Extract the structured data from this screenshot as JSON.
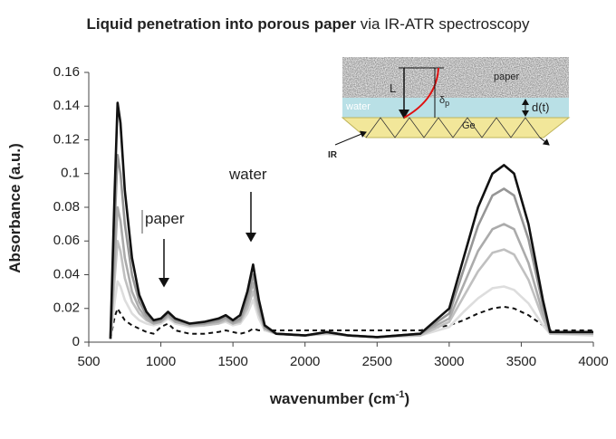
{
  "chart_data": {
    "type": "line",
    "title": [
      "Liquid penetration into porous paper",
      " via IR-ATR spectroscopy"
    ],
    "x_label": [
      "wavenumber (cm",
      "-1",
      ")"
    ],
    "y_label": "Absorbance (a.u.)",
    "annotations": [
      "paper",
      "water"
    ],
    "inset": {
      "paper": "paper",
      "water": "water",
      "length": "L",
      "depth": "δ",
      "depth_sub": "p",
      "thickness": "d(t)",
      "crystal": "Ge",
      "beam": "IR"
    },
    "xlim": [
      500,
      4000
    ],
    "xticks": [
      500,
      1000,
      1500,
      2000,
      2500,
      3000,
      3500,
      4000
    ],
    "ylim": [
      0,
      0.16
    ],
    "yticks": [
      0,
      0.02,
      0.04,
      0.06,
      0.08,
      0.1,
      0.12,
      0.14,
      0.16
    ],
    "x": [
      650,
      680,
      700,
      720,
      750,
      800,
      850,
      900,
      950,
      1000,
      1050,
      1100,
      1200,
      1300,
      1400,
      1450,
      1500,
      1550,
      1600,
      1640,
      1680,
      1720,
      1800,
      2000,
      2150,
      2300,
      2500,
      2800,
      3000,
      3100,
      3200,
      3300,
      3380,
      3450,
      3550,
      3650,
      3700,
      4000
    ],
    "series": [
      {
        "color": "#111111",
        "dashed": true,
        "values": [
          0.002,
          0.015,
          0.02,
          0.017,
          0.013,
          0.01,
          0.008,
          0.006,
          0.005,
          0.009,
          0.011,
          0.007,
          0.005,
          0.005,
          0.006,
          0.007,
          0.006,
          0.005,
          0.006,
          0.008,
          0.007,
          0.007,
          0.007,
          0.007,
          0.007,
          0.007,
          0.007,
          0.007,
          0.01,
          0.013,
          0.017,
          0.02,
          0.021,
          0.02,
          0.016,
          0.01,
          0.007,
          0.007
        ]
      },
      {
        "color": "#dddddd",
        "values": [
          0.002,
          0.024,
          0.036,
          0.033,
          0.025,
          0.017,
          0.013,
          0.011,
          0.01,
          0.011,
          0.014,
          0.011,
          0.009,
          0.01,
          0.011,
          0.012,
          0.01,
          0.011,
          0.017,
          0.025,
          0.014,
          0.007,
          0.005,
          0.004,
          0.005,
          0.004,
          0.003,
          0.004,
          0.009,
          0.018,
          0.026,
          0.032,
          0.033,
          0.031,
          0.023,
          0.01,
          0.005,
          0.004
        ]
      },
      {
        "color": "#c0c0c0",
        "values": [
          0.002,
          0.038,
          0.06,
          0.054,
          0.038,
          0.024,
          0.017,
          0.013,
          0.011,
          0.012,
          0.015,
          0.012,
          0.01,
          0.01,
          0.011,
          0.013,
          0.011,
          0.012,
          0.02,
          0.03,
          0.017,
          0.008,
          0.005,
          0.004,
          0.005,
          0.004,
          0.003,
          0.004,
          0.012,
          0.027,
          0.042,
          0.053,
          0.055,
          0.052,
          0.037,
          0.014,
          0.005,
          0.005
        ]
      },
      {
        "color": "#ababab",
        "values": [
          0.002,
          0.05,
          0.08,
          0.072,
          0.05,
          0.03,
          0.02,
          0.014,
          0.011,
          0.012,
          0.016,
          0.012,
          0.01,
          0.011,
          0.012,
          0.014,
          0.011,
          0.013,
          0.023,
          0.035,
          0.02,
          0.008,
          0.005,
          0.004,
          0.006,
          0.004,
          0.003,
          0.005,
          0.014,
          0.034,
          0.054,
          0.067,
          0.07,
          0.067,
          0.047,
          0.017,
          0.006,
          0.005
        ]
      },
      {
        "color": "#969696",
        "values": [
          0.002,
          0.07,
          0.111,
          0.1,
          0.07,
          0.04,
          0.024,
          0.016,
          0.012,
          0.013,
          0.017,
          0.013,
          0.011,
          0.011,
          0.013,
          0.015,
          0.012,
          0.014,
          0.026,
          0.04,
          0.022,
          0.009,
          0.005,
          0.004,
          0.006,
          0.004,
          0.003,
          0.005,
          0.017,
          0.043,
          0.069,
          0.087,
          0.091,
          0.087,
          0.061,
          0.022,
          0.006,
          0.006
        ]
      },
      {
        "color": "#111111",
        "values": [
          0.002,
          0.09,
          0.142,
          0.13,
          0.09,
          0.05,
          0.028,
          0.018,
          0.013,
          0.014,
          0.018,
          0.014,
          0.011,
          0.012,
          0.014,
          0.016,
          0.013,
          0.016,
          0.03,
          0.046,
          0.025,
          0.01,
          0.005,
          0.004,
          0.006,
          0.004,
          0.003,
          0.005,
          0.02,
          0.05,
          0.08,
          0.1,
          0.105,
          0.1,
          0.07,
          0.025,
          0.006,
          0.006
        ]
      }
    ]
  }
}
